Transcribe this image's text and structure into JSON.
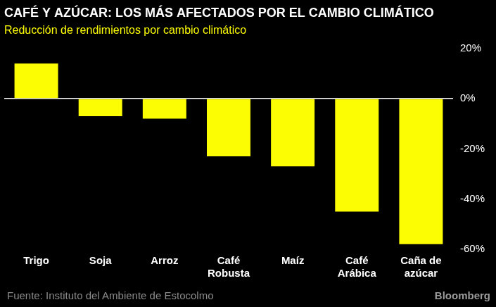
{
  "chart_data": {
    "type": "bar",
    "title": "CAFÉ Y AZÚCAR: LOS MÁS AFECTADOS POR EL CAMBIO CLIMÁTICO",
    "subtitle": "Reducción de rendimientos por cambio climático",
    "categories": [
      "Trigo",
      "Soja",
      "Arroz",
      "Café\nRobusta",
      "Maíz",
      "Café\nArábica",
      "Caña de\nazúcar"
    ],
    "values": [
      14,
      -7,
      -8,
      -23,
      -27,
      -45,
      -58
    ],
    "color": "#fcfc03",
    "ylim": [
      -60,
      20
    ],
    "yticks": [
      {
        "value": 20,
        "label": "20%"
      },
      {
        "value": 0,
        "label": "0%"
      },
      {
        "value": -20,
        "label": "-20%"
      },
      {
        "value": -40,
        "label": "-40%"
      },
      {
        "value": -60,
        "label": "-60%"
      }
    ],
    "grid": false,
    "source": "Fuente: Instituto del Ambiente de Estocolmo",
    "credit": "Bloomberg"
  }
}
